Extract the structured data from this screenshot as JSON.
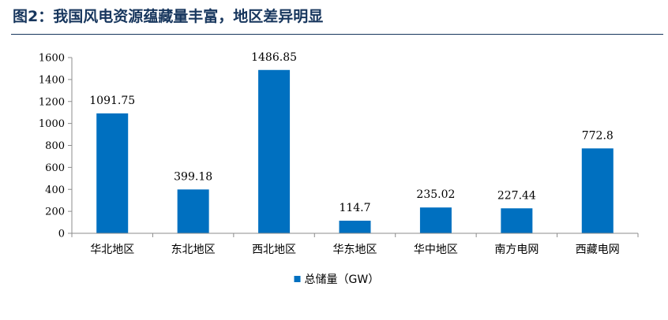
{
  "figure_title": "图2：我国风电资源蕴藏量丰富，地区差异明显",
  "colors": {
    "bar": "#0070c0",
    "title": "#17365d",
    "axis": "#8c8c8c",
    "text": "#000000"
  },
  "chart_data": {
    "type": "bar",
    "categories": [
      "华北地区",
      "东北地区",
      "西北地区",
      "华东地区",
      "华中地区",
      "南方电网",
      "西藏电网"
    ],
    "series": [
      {
        "name": "总储量（GW）",
        "values": [
          1091.75,
          399.18,
          1486.85,
          114.7,
          235.02,
          227.44,
          772.8
        ],
        "data_labels": [
          "1091.75",
          "399.18",
          "1486.85",
          "114.7",
          "235.02",
          "227.44",
          "772.8"
        ]
      }
    ],
    "ylim": [
      0,
      1600
    ],
    "y_ticks": [
      0,
      200,
      400,
      600,
      800,
      1000,
      1200,
      1400,
      1600
    ],
    "grid": false,
    "legend_position": "bottom"
  }
}
